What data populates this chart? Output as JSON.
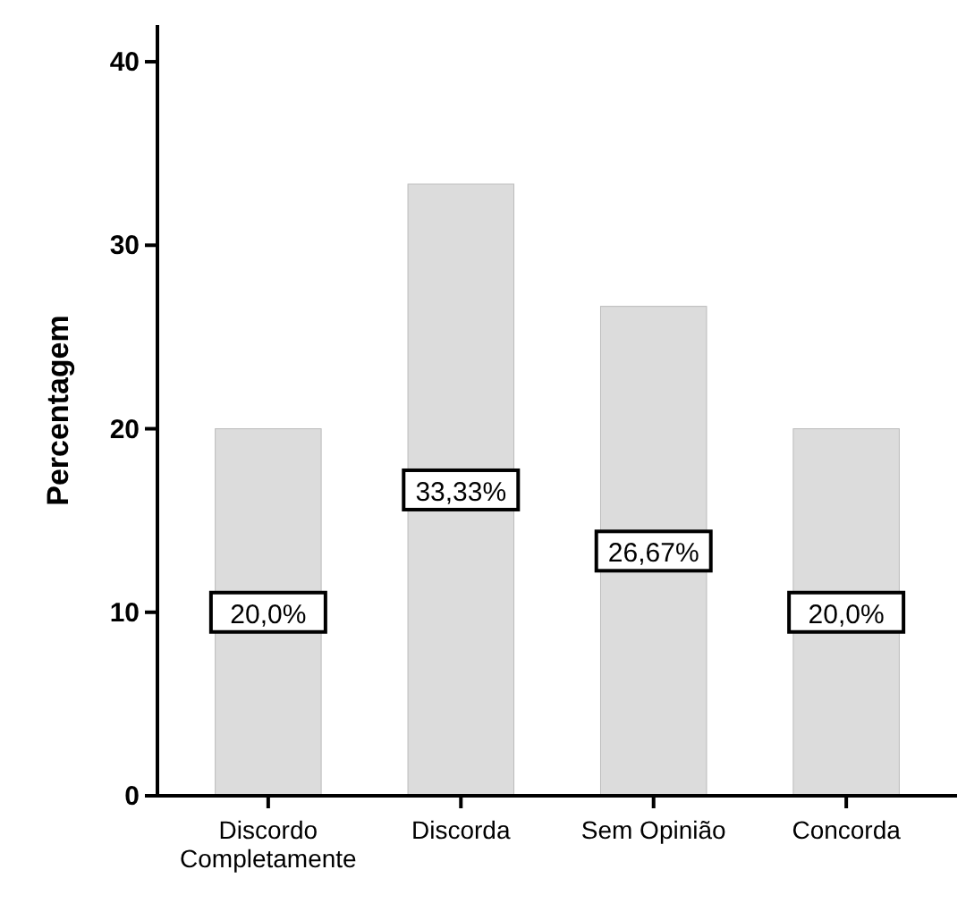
{
  "chart_data": {
    "type": "bar",
    "ylabel": "Percentagem",
    "categories": [
      "Discordo Completamente",
      "Discorda",
      "Sem Opinião",
      "Concorda"
    ],
    "values": [
      20,
      33.33,
      26.67,
      20
    ],
    "color": "#dcdcdc",
    "value_labels": [
      "20,0%",
      "33,33%",
      "26,67%",
      "20,0%"
    ],
    "ylim": [
      0,
      42
    ],
    "yticks": [
      0,
      10,
      20,
      30,
      40
    ],
    "grid": false
  }
}
